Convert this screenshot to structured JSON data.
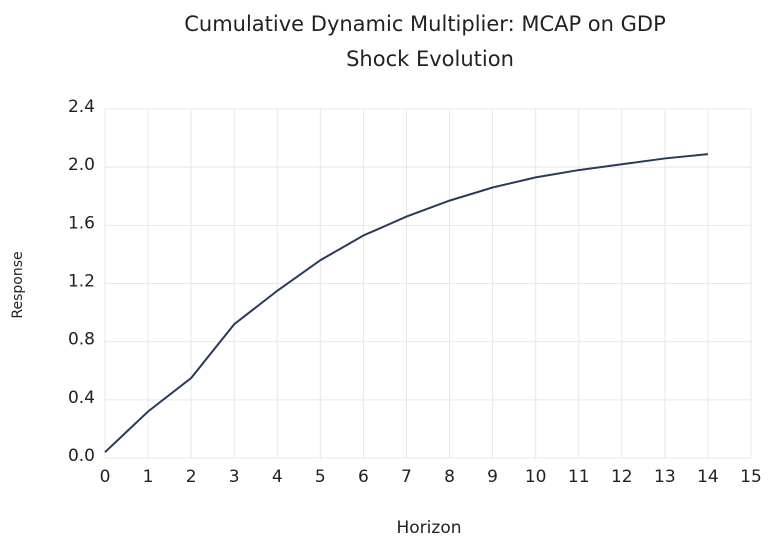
{
  "chart_data": {
    "type": "line",
    "title": "Cumulative Dynamic Multiplier: MCAP on GDP",
    "subtitle": "Shock Evolution",
    "x_label": "Horizon",
    "y_label": "Response",
    "x": [
      0,
      1,
      2,
      3,
      4,
      5,
      6,
      7,
      8,
      9,
      10,
      11,
      12,
      13,
      14
    ],
    "series": [
      {
        "name": "Response",
        "color": "#2a3a5a",
        "values": [
          0.04,
          0.32,
          0.55,
          0.92,
          1.15,
          1.36,
          1.53,
          1.66,
          1.77,
          1.86,
          1.93,
          1.98,
          2.02,
          2.06,
          2.09
        ]
      }
    ],
    "xlim": [
      0,
      15
    ],
    "xticks": [
      0,
      1,
      2,
      3,
      4,
      5,
      6,
      7,
      8,
      9,
      10,
      11,
      12,
      13,
      14,
      15
    ],
    "ylim": [
      0,
      2.4
    ],
    "yticks": [
      {
        "value": 0,
        "label": "0.0"
      },
      0.4,
      0.8,
      1.2,
      1.6,
      {
        "value": 2,
        "label": "2.0"
      },
      2.4
    ],
    "grid": true
  }
}
